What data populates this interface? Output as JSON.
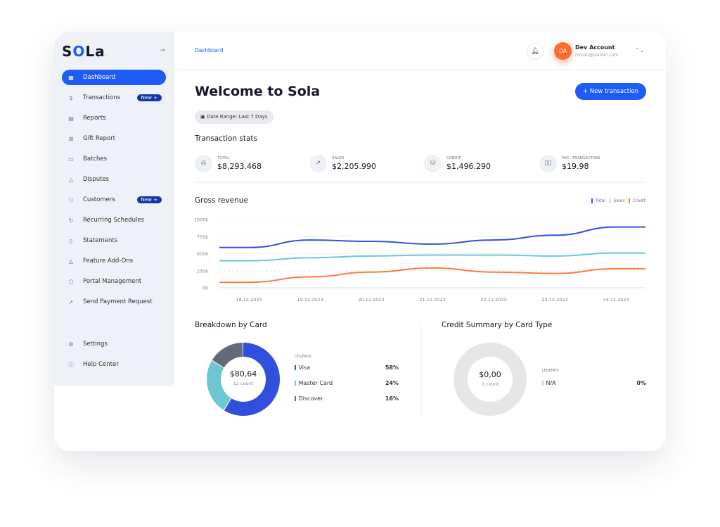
{
  "sidebar": {
    "logo": "SOLA",
    "items": [
      {
        "label": "Dashboard",
        "icon": "grid-icon",
        "active": true
      },
      {
        "label": "Transactions",
        "icon": "dollar-icon",
        "badge": "New +"
      },
      {
        "label": "Reports",
        "icon": "report-icon"
      },
      {
        "label": "Gift Report",
        "icon": "gift-icon"
      },
      {
        "label": "Batches",
        "icon": "wallet-icon"
      },
      {
        "label": "Disputes",
        "icon": "warning-icon"
      },
      {
        "label": "Customers",
        "icon": "users-icon",
        "badge": "New +"
      },
      {
        "label": "Recurring Schedules",
        "icon": "recurring-icon"
      },
      {
        "label": "Statements",
        "icon": "document-icon"
      },
      {
        "label": "Feature Add-Ons",
        "icon": "layers-icon"
      },
      {
        "label": "Portal Management",
        "icon": "cube-icon"
      },
      {
        "label": "Send Payment Request",
        "icon": "send-icon"
      }
    ],
    "bottom": [
      {
        "label": "Settings",
        "icon": "gear-icon"
      },
      {
        "label": "Help Center",
        "icon": "info-icon"
      }
    ]
  },
  "header": {
    "breadcrumb": "Dashboard",
    "user_initials": "DA",
    "user_name": "Dev Account",
    "user_email": "roman@plat4m.com"
  },
  "page": {
    "title": "Welcome to Sola",
    "new_button": "+ New transaction",
    "date_range": "Date Range: Last 7 Days",
    "stats_title": "Transaction stats",
    "stats": [
      {
        "label": "TOTAL",
        "value": "$8,293.468",
        "icon": "target-icon"
      },
      {
        "label": "SALES",
        "value": "$2,205.990",
        "icon": "arrow-up-right-icon"
      },
      {
        "label": "CREDIT",
        "value": "$1,496.290",
        "icon": "database-icon"
      },
      {
        "label": "AVG. TRANSACTION",
        "value": "$19.98",
        "icon": "bars-icon"
      }
    ]
  },
  "colors": {
    "total": "#3550e0",
    "sales": "#6cc7d2",
    "credit": "#ff7a3c",
    "visa": "#2f4fdc",
    "mastercard": "#6cc7d2",
    "discover": "#646a7a",
    "accent": "#1f5cf7"
  },
  "chart_data": [
    {
      "type": "line",
      "title": "Gross revenue",
      "categories": [
        "18.12.2023",
        "19.12.2023",
        "20.12.2023",
        "21.12.2023",
        "22.12.2023",
        "23.12.2023",
        "24.12.2023"
      ],
      "yticks": [
        "0k",
        "250k",
        "500k",
        "750k",
        "1000k"
      ],
      "ylim": [
        0,
        1000000
      ],
      "grid": true,
      "legend": "top-right",
      "series": [
        {
          "name": "Total",
          "values": [
            590000,
            700000,
            680000,
            640000,
            700000,
            770000,
            890000
          ]
        },
        {
          "name": "Sales",
          "values": [
            395000,
            440000,
            465000,
            480000,
            480000,
            465000,
            510000
          ]
        },
        {
          "name": "Credit",
          "values": [
            80000,
            160000,
            230000,
            290000,
            230000,
            210000,
            280000
          ]
        }
      ]
    },
    {
      "type": "pie",
      "title": "Breakdown by Card",
      "center_value": "$80,64",
      "center_label": "12 count",
      "legend_title": "LEGENDS",
      "slices": [
        {
          "name": "Visa",
          "value": 58,
          "label": "58%"
        },
        {
          "name": "Master Card",
          "value": 24,
          "label": "24%"
        },
        {
          "name": "Discover",
          "value": 16,
          "label": "16%"
        }
      ]
    },
    {
      "type": "pie",
      "title": "Credit Summary by Card Type",
      "center_value": "$0,00",
      "center_label": "0 count",
      "legend_title": "LEGENDS",
      "slices": [
        {
          "name": "N/A",
          "value": 0,
          "label": "0%"
        }
      ]
    }
  ]
}
